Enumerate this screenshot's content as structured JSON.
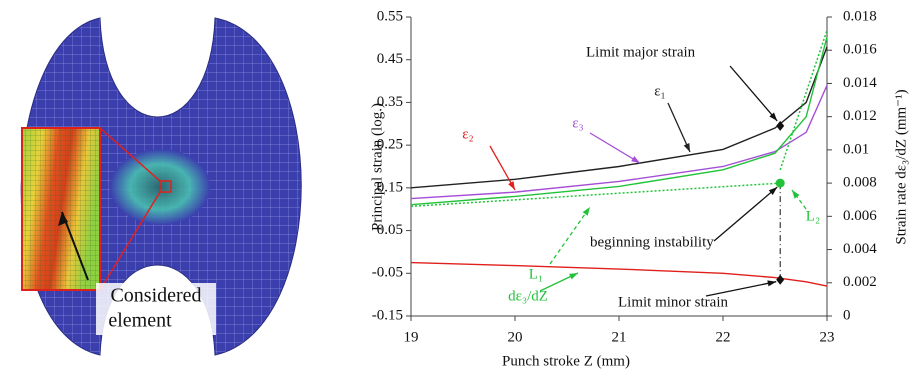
{
  "left_image": {
    "label_lines": [
      "Considered",
      "element"
    ]
  },
  "chart_data": {
    "type": "line",
    "xlabel": "Punch stroke Z (mm)",
    "ylabel": "Principal strain (log.)",
    "y2label": "Strain rate dε₃/dZ (mm⁻¹)",
    "xlim": [
      19,
      23
    ],
    "xticks": [
      19,
      20,
      21,
      22,
      23
    ],
    "ylim": [
      -0.15,
      0.55
    ],
    "yticks": [
      -0.15,
      -0.05,
      0.05,
      0.15,
      0.25,
      0.35,
      0.45,
      0.55
    ],
    "y2lim": [
      0,
      0.018
    ],
    "y2ticks": [
      0,
      0.002,
      0.004,
      0.006,
      0.008,
      0.01,
      0.012,
      0.014,
      0.016,
      0.018
    ],
    "series": [
      {
        "name": "ε₁",
        "color": "#222222",
        "x": [
          19,
          20,
          21,
          22,
          22.5,
          22.8,
          23
        ],
        "values": [
          0.15,
          0.17,
          0.2,
          0.24,
          0.29,
          0.35,
          0.48
        ]
      },
      {
        "name": "ε₃",
        "color": "#a64fd6",
        "x": [
          19,
          20,
          21,
          22,
          22.5,
          22.8,
          23
        ],
        "values": [
          0.125,
          0.14,
          0.165,
          0.2,
          0.235,
          0.28,
          0.39
        ]
      },
      {
        "name": "ε₂",
        "color": "#e0201c",
        "x": [
          19,
          20,
          21,
          22,
          22.5,
          22.8,
          23
        ],
        "values": [
          -0.025,
          -0.032,
          -0.04,
          -0.05,
          -0.06,
          -0.07,
          -0.08
        ]
      },
      {
        "name": "dε₃/dZ",
        "color": "#22c33a",
        "axis": "y2",
        "x": [
          19,
          20,
          21,
          22,
          22.5,
          22.8,
          23
        ],
        "values": [
          0.0067,
          0.0072,
          0.0078,
          0.0088,
          0.0098,
          0.012,
          0.0168
        ]
      },
      {
        "name": "L₁",
        "color": "#22c33a",
        "axis": "y2",
        "style": "dotted",
        "x": [
          19,
          22.55
        ],
        "values": [
          0.0066,
          0.008
        ]
      },
      {
        "name": "L₂",
        "color": "#22c33a",
        "axis": "y2",
        "style": "dotted",
        "x": [
          22.55,
          23
        ],
        "values": [
          0.0088,
          0.0172
        ]
      }
    ],
    "points": [
      {
        "name": "Limit major strain",
        "x": 22.55,
        "y": 0.295,
        "color": "#111111",
        "marker": "diamond"
      },
      {
        "name": "beginning instability",
        "x": 22.55,
        "y": 0.008,
        "axis": "y2",
        "color": "#22c33a",
        "marker": "circle"
      },
      {
        "name": "Limit minor strain",
        "x": 22.55,
        "y": -0.065,
        "color": "#111111",
        "marker": "diamond"
      }
    ]
  }
}
